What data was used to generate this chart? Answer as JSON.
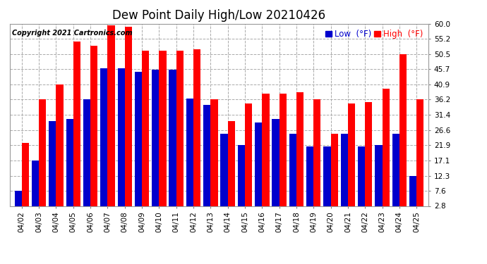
{
  "title": "Dew Point Daily High/Low 20210426",
  "copyright": "Copyright 2021 Cartronics.com",
  "legend_low": "Low",
  "legend_high": "High",
  "legend_unit": "(°F)",
  "dates": [
    "04/02",
    "04/03",
    "04/04",
    "04/05",
    "04/06",
    "04/07",
    "04/08",
    "04/09",
    "04/10",
    "04/11",
    "04/12",
    "04/13",
    "04/14",
    "04/15",
    "04/16",
    "04/17",
    "04/18",
    "04/19",
    "04/20",
    "04/21",
    "04/22",
    "04/23",
    "04/24",
    "04/25"
  ],
  "high_values": [
    22.5,
    36.2,
    40.9,
    54.5,
    53.0,
    59.5,
    59.0,
    51.5,
    51.5,
    51.5,
    52.0,
    36.2,
    29.5,
    35.0,
    38.0,
    38.0,
    38.5,
    36.2,
    25.5,
    35.0,
    35.5,
    39.5,
    50.5,
    36.2
  ],
  "low_values": [
    7.6,
    17.1,
    29.5,
    30.0,
    36.2,
    46.0,
    46.0,
    45.0,
    45.5,
    45.5,
    36.5,
    34.5,
    25.5,
    22.0,
    29.0,
    30.0,
    25.5,
    21.5,
    21.5,
    25.5,
    21.5,
    22.0,
    25.5,
    12.3
  ],
  "high_color": "#ff0000",
  "low_color": "#0000cc",
  "bg_color": "#ffffff",
  "ylim_min": 2.8,
  "ylim_max": 60.0,
  "yticks": [
    2.8,
    7.6,
    12.3,
    17.1,
    21.9,
    26.6,
    31.4,
    36.2,
    40.9,
    45.7,
    50.5,
    55.2,
    60.0
  ],
  "bar_width": 0.42,
  "title_fontsize": 12,
  "tick_fontsize": 7.5,
  "legend_fontsize": 8.5,
  "copyright_fontsize": 7
}
